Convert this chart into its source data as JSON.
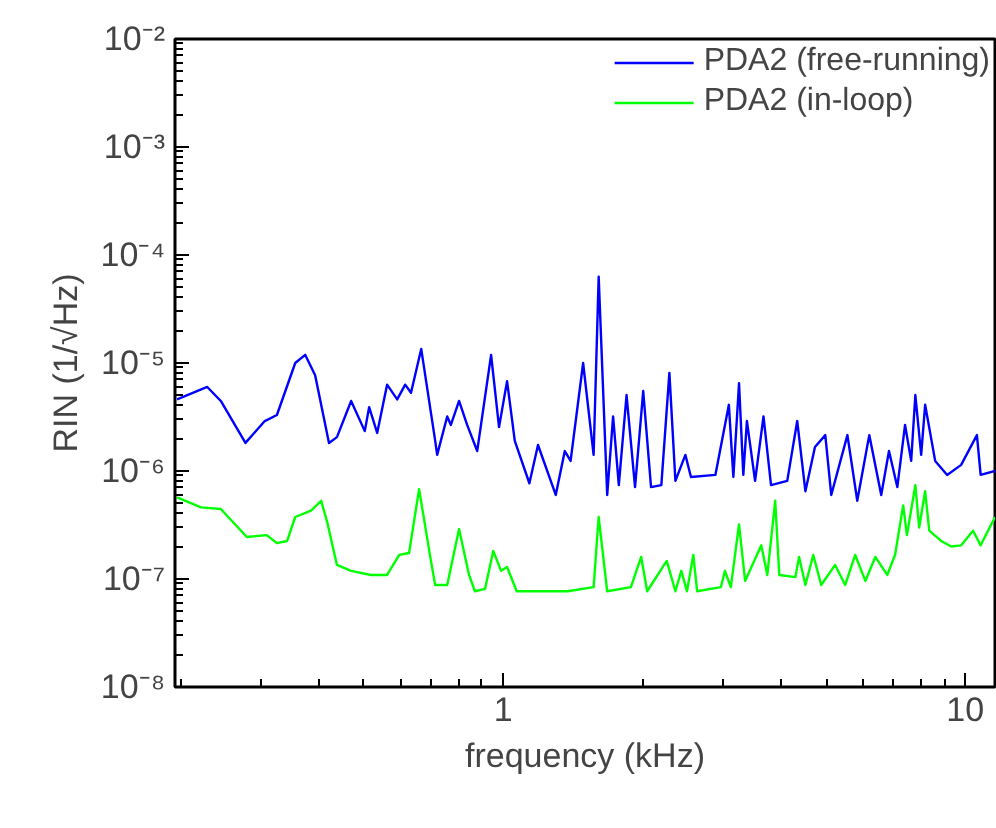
{
  "chart_data": {
    "type": "line",
    "xlabel": "frequency (kHz)",
    "ylabel": "RIN (1/√Hz)",
    "log": "xy",
    "grid": false,
    "legend": "top right",
    "marker": "none",
    "line_style": "solid",
    "xlim": [
      0.195,
      11.6
    ],
    "ylim": [
      1e-08,
      0.01
    ],
    "xticks": [
      1,
      10
    ],
    "yticks": [
      {
        "value": 1e-08,
        "label": "10⁻⁸"
      },
      {
        "value": 1e-07,
        "label": "10⁻⁷"
      },
      {
        "value": 1e-06,
        "label": "10⁻⁶"
      },
      {
        "value": 1e-05,
        "label": "10⁻⁵"
      },
      {
        "value": 0.0001,
        "label": "10⁻⁴"
      },
      {
        "value": 0.001,
        "label": "10⁻³"
      },
      {
        "value": 0.01,
        "label": "10⁻²"
      }
    ],
    "series": [
      {
        "name": "PDA2 (free-running)",
        "color": "#0000ff",
        "x": [
          0.197,
          0.229,
          0.245,
          0.277,
          0.305,
          0.324,
          0.355,
          0.373,
          0.392,
          0.42,
          0.437,
          0.469,
          0.502,
          0.513,
          0.534,
          0.561,
          0.59,
          0.614,
          0.632,
          0.665,
          0.713,
          0.72,
          0.757,
          0.771,
          0.803,
          0.836,
          0.879,
          0.942,
          0.98,
          1.02,
          1.06,
          1.14,
          1.19,
          1.3,
          1.36,
          1.4,
          1.49,
          1.57,
          1.61,
          1.68,
          1.73,
          1.78,
          1.85,
          1.93,
          2.01,
          2.09,
          2.2,
          2.29,
          2.36,
          2.48,
          2.55,
          2.88,
          3.08,
          3.15,
          3.24,
          3.31,
          3.37,
          3.51,
          3.66,
          3.8,
          4.12,
          4.33,
          4.51,
          4.73,
          4.98,
          5.13,
          5.56,
          5.84,
          6.2,
          6.58,
          6.84,
          7.13,
          7.41,
          7.64,
          7.8,
          8.03,
          8.19,
          8.61,
          9.14,
          9.8,
          10.6,
          10.8,
          11.6
        ],
        "values": [
          4.6e-06,
          6e-06,
          4.45e-06,
          1.82e-06,
          2.9e-06,
          3.3e-06,
          1e-05,
          1.19e-05,
          7.7e-06,
          1.82e-06,
          2.06e-06,
          4.45e-06,
          2.34e-06,
          3.9e-06,
          2.25e-06,
          6.3e-06,
          4.6e-06,
          6.3e-06,
          5.3e-06,
          1.35e-05,
          1.9e-06,
          1.41e-06,
          3.2e-06,
          2.67e-06,
          4.45e-06,
          2.67e-06,
          1.53e-06,
          1.19e-05,
          2.55e-06,
          6.8e-06,
          1.9e-06,
          7.7e-07,
          1.74e-06,
          6e-07,
          1.53e-06,
          1.24e-06,
          1e-05,
          1.41e-06,
          6.3e-05,
          6e-07,
          3.2e-06,
          7.4e-07,
          5.05e-06,
          7.1e-07,
          5.5e-06,
          7.1e-07,
          7.4e-07,
          8.1e-06,
          8.1e-07,
          1.41e-06,
          8.8e-07,
          9.2e-07,
          4.1e-06,
          8.8e-07,
          6.5e-06,
          9.2e-07,
          2.9e-06,
          8.1e-07,
          3.2e-06,
          7.4e-07,
          8.1e-07,
          2.9e-06,
          6.5e-07,
          1.67e-06,
          2.15e-06,
          6e-07,
          2.15e-06,
          5.3e-07,
          2.15e-06,
          6e-07,
          1.53e-06,
          7.1e-07,
          2.67e-06,
          1.24e-06,
          5.05e-06,
          1.41e-06,
          4.1e-06,
          1.24e-06,
          9.2e-07,
          1.14e-06,
          2.15e-06,
          9.2e-07,
          1e-06
        ]
      },
      {
        "name": "PDA2 (in-loop)",
        "color": "#00ff00",
        "x": [
          0.197,
          0.222,
          0.245,
          0.279,
          0.308,
          0.324,
          0.341,
          0.355,
          0.384,
          0.404,
          0.416,
          0.437,
          0.469,
          0.518,
          0.561,
          0.596,
          0.626,
          0.658,
          0.698,
          0.713,
          0.757,
          0.803,
          0.844,
          0.869,
          0.914,
          0.952,
          0.99,
          1.02,
          1.07,
          1.19,
          1.38,
          1.57,
          1.61,
          1.68,
          1.89,
          1.99,
          2.05,
          2.26,
          2.36,
          2.43,
          2.5,
          2.58,
          2.63,
          2.96,
          3.02,
          3.11,
          3.24,
          3.34,
          3.62,
          3.73,
          3.88,
          3.96,
          4.29,
          4.37,
          4.51,
          4.69,
          4.88,
          5.23,
          5.5,
          5.78,
          6.08,
          6.39,
          6.78,
          7.05,
          7.34,
          7.48,
          7.8,
          7.95,
          8.19,
          8.36,
          8.87,
          9.33,
          9.8,
          10.4,
          10.8,
          11.6
        ],
        "values": [
          5.7e-07,
          4.6e-07,
          4.45e-07,
          2.45e-07,
          2.55e-07,
          2.15e-07,
          2.25e-07,
          3.75e-07,
          4.3e-07,
          5.3e-07,
          3.4e-07,
          1.35e-07,
          1.19e-07,
          1.09e-07,
          1.09e-07,
          1.67e-07,
          1.74e-07,
          6.8e-07,
          1.47e-07,
          8.8e-08,
          8.8e-08,
          2.9e-07,
          1.09e-07,
          7.7e-08,
          8.1e-08,
          1.82e-07,
          1.19e-07,
          1.29e-07,
          7.7e-08,
          7.7e-08,
          7.7e-08,
          8.4e-08,
          3.75e-07,
          7.7e-08,
          8.4e-08,
          1.6e-07,
          7.7e-08,
          1.47e-07,
          7.7e-08,
          1.19e-07,
          7.7e-08,
          1.67e-07,
          7.7e-08,
          8.4e-08,
          1.19e-07,
          8.4e-08,
          3.2e-07,
          9.6e-08,
          2.05e-07,
          1.09e-07,
          5.3e-07,
          1.09e-07,
          1.04e-07,
          1.6e-07,
          8.8e-08,
          1.67e-07,
          8.8e-08,
          1.35e-07,
          8.8e-08,
          1.67e-07,
          9.6e-08,
          1.6e-07,
          1.09e-07,
          1.67e-07,
          4.8e-07,
          2.55e-07,
          7.4e-07,
          3e-07,
          6.5e-07,
          2.8e-07,
          2.25e-07,
          2e-07,
          2.05e-07,
          2.8e-07,
          2.05e-07,
          3.75e-07
        ]
      }
    ]
  }
}
